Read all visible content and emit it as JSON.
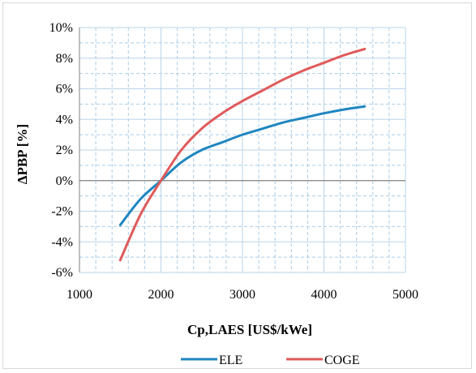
{
  "chart_data": {
    "type": "line",
    "xlabel": "Cp,LAES [US$/kWe]",
    "ylabel": "ΔPBP [%]",
    "xlim": [
      1000,
      5000
    ],
    "ylim": [
      -6,
      10
    ],
    "x_ticks": [
      1000,
      2000,
      3000,
      4000,
      5000
    ],
    "y_ticks": [
      -6,
      -4,
      -2,
      0,
      2,
      4,
      6,
      8,
      10
    ],
    "x_tick_labels": [
      "1000",
      "2000",
      "3000",
      "4000",
      "5000"
    ],
    "y_tick_labels": [
      "-6%",
      "-4%",
      "-2%",
      "0%",
      "2%",
      "4%",
      "6%",
      "8%",
      "10%"
    ],
    "grid": true,
    "legend_position": "bottom",
    "series": [
      {
        "name": "ELE",
        "color": "#1f86c0",
        "x": [
          1500,
          1750,
          2000,
          2250,
          2500,
          2750,
          3000,
          3250,
          3500,
          3750,
          4000,
          4250,
          4500
        ],
        "values": [
          -2.9,
          -1.2,
          0.0,
          1.2,
          2.0,
          2.5,
          3.0,
          3.4,
          3.8,
          4.1,
          4.4,
          4.65,
          4.85
        ]
      },
      {
        "name": "COGE",
        "color": "#e05a5a",
        "x": [
          1500,
          1750,
          2000,
          2250,
          2500,
          2750,
          3000,
          3250,
          3500,
          3750,
          4000,
          4250,
          4500
        ],
        "values": [
          -5.2,
          -2.2,
          0.0,
          2.0,
          3.4,
          4.4,
          5.2,
          5.9,
          6.6,
          7.2,
          7.7,
          8.2,
          8.6
        ]
      }
    ]
  }
}
